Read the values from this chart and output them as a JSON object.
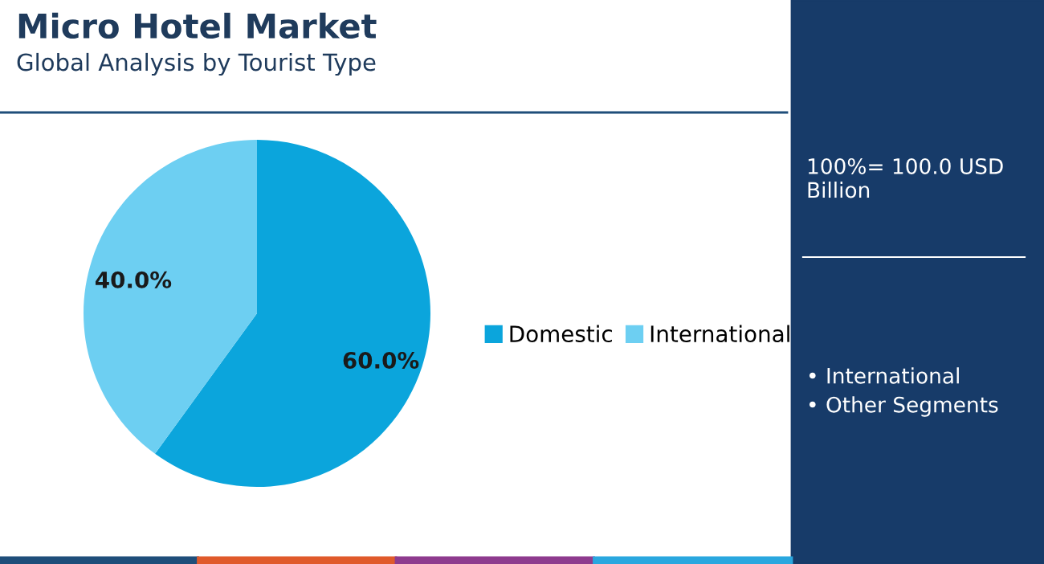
{
  "chart_data": {
    "type": "pie",
    "title": "Micro Hotel Market",
    "subtitle": "Global Analysis by Tourist Type",
    "categories": [
      "Domestic",
      "International"
    ],
    "values": [
      60,
      40
    ],
    "colors": [
      "#0ba5dc",
      "#6dcff2"
    ],
    "value_labels": [
      "60.0%",
      "40.0%"
    ],
    "legend": "right",
    "annotations": [
      "100%= 100.0 USD Billion",
      "• International",
      "• Other Segments"
    ]
  }
}
